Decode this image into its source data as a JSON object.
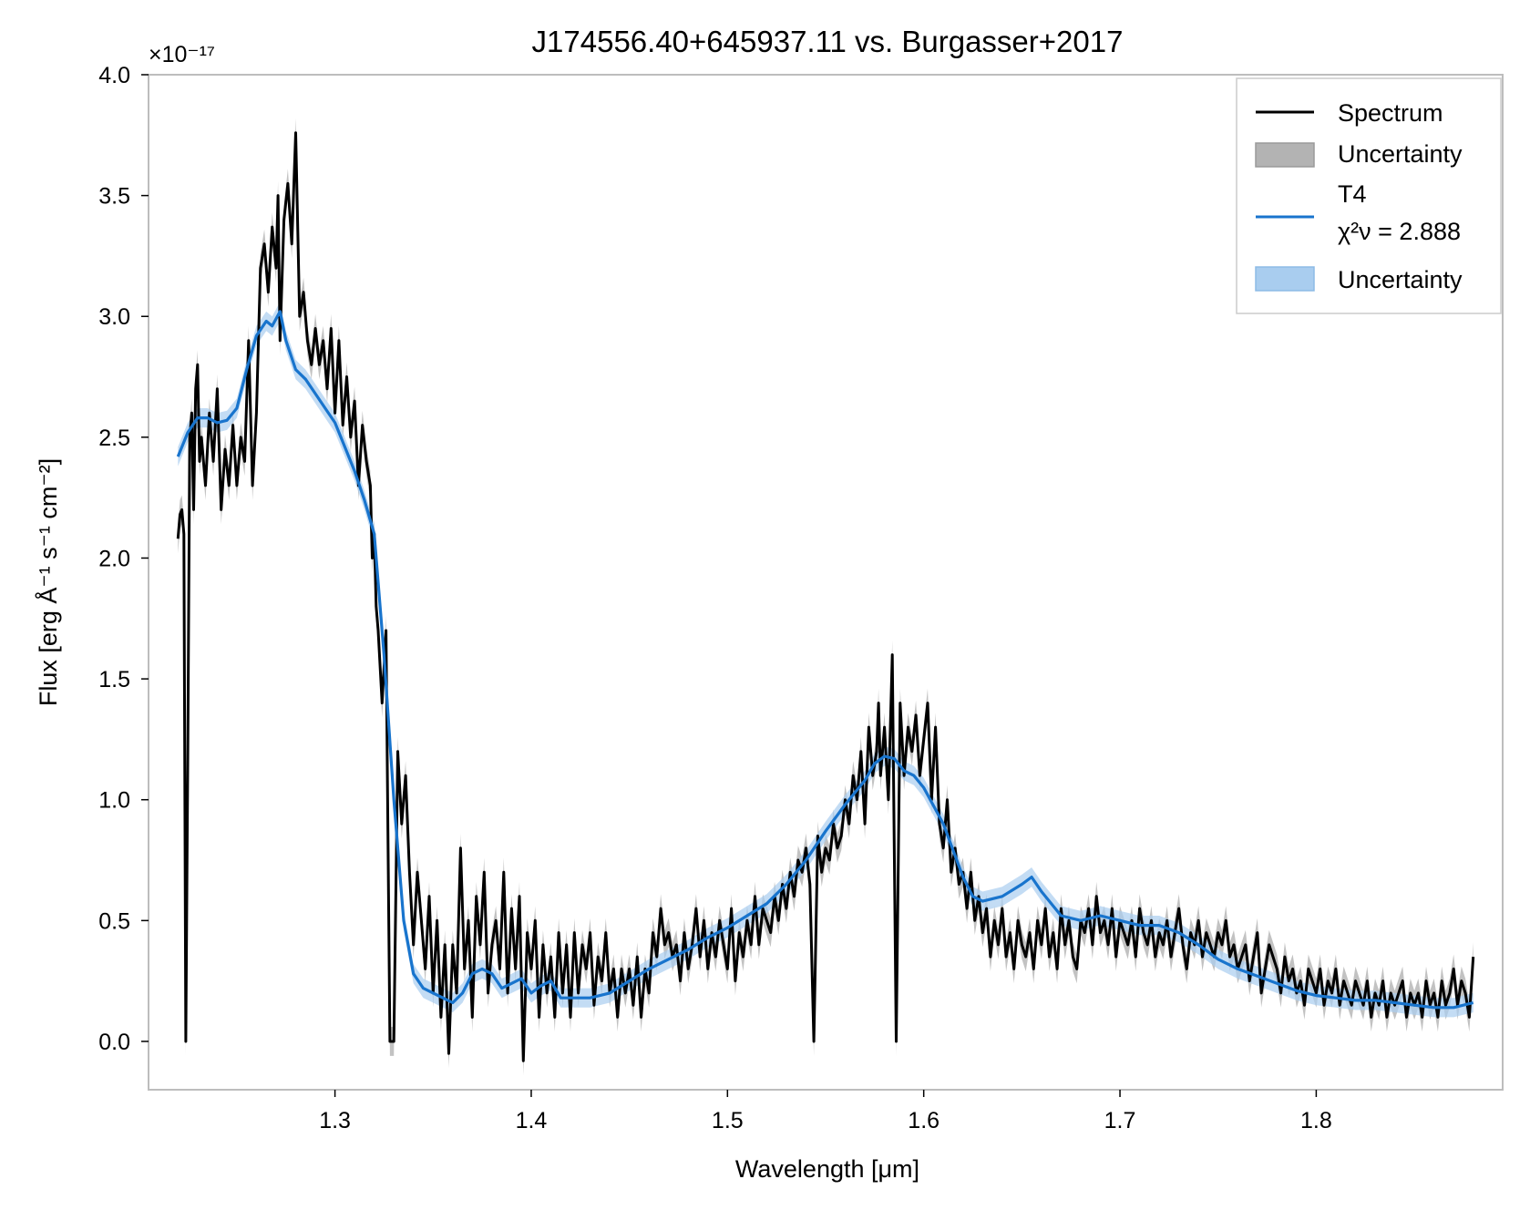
{
  "chart_data": {
    "type": "line",
    "title": "J174556.40+645937.11 vs. Burgasser+2017",
    "xlabel": "Wavelength [μm]",
    "ylabel": "Flux [erg Å⁻¹ s⁻¹ cm⁻²]",
    "y_offset_label": "×10⁻¹⁷",
    "xlim": [
      1.205,
      1.895
    ],
    "ylim": [
      -0.2,
      4.0
    ],
    "x_ticks": [
      1.3,
      1.4,
      1.5,
      1.6,
      1.7,
      1.8
    ],
    "x_tick_labels": [
      "1.3",
      "1.4",
      "1.5",
      "1.6",
      "1.7",
      "1.8"
    ],
    "y_ticks": [
      0.0,
      0.5,
      1.0,
      1.5,
      2.0,
      2.5,
      3.0,
      3.5,
      4.0
    ],
    "y_tick_labels": [
      "0.0",
      "0.5",
      "1.0",
      "1.5",
      "2.0",
      "2.5",
      "3.0",
      "3.5",
      "4.0"
    ],
    "grid": false,
    "legend_position": "top-right",
    "legend": [
      {
        "label": "Spectrum",
        "kind": "line",
        "color": "#000000"
      },
      {
        "label": "Uncertainty",
        "kind": "patch",
        "color": "#b3b3b3"
      },
      {
        "label": "T4",
        "label2": "χ²ν = 2.888",
        "kind": "line",
        "color": "#1874cd"
      },
      {
        "label": "Uncertainty",
        "kind": "patch",
        "color": "#a9cdef"
      }
    ],
    "series": [
      {
        "name": "Spectrum",
        "color": "#000000",
        "band_color": "#b3b3b3",
        "band_halfwidth": 0.06,
        "x": [
          1.22,
          1.221,
          1.222,
          1.223,
          1.224,
          1.225,
          1.226,
          1.227,
          1.228,
          1.229,
          1.23,
          1.231,
          1.232,
          1.234,
          1.236,
          1.238,
          1.24,
          1.242,
          1.244,
          1.246,
          1.248,
          1.25,
          1.252,
          1.254,
          1.256,
          1.258,
          1.26,
          1.262,
          1.264,
          1.266,
          1.268,
          1.27,
          1.271,
          1.272,
          1.274,
          1.276,
          1.278,
          1.28,
          1.282,
          1.284,
          1.286,
          1.288,
          1.29,
          1.292,
          1.294,
          1.296,
          1.298,
          1.3,
          1.302,
          1.304,
          1.306,
          1.308,
          1.31,
          1.312,
          1.314,
          1.316,
          1.318,
          1.319,
          1.32,
          1.321,
          1.322,
          1.324,
          1.326,
          1.328,
          1.33,
          1.332,
          1.334,
          1.336,
          1.338,
          1.34,
          1.342,
          1.344,
          1.346,
          1.348,
          1.35,
          1.352,
          1.354,
          1.356,
          1.358,
          1.36,
          1.362,
          1.364,
          1.366,
          1.368,
          1.37,
          1.372,
          1.374,
          1.376,
          1.378,
          1.38,
          1.382,
          1.384,
          1.386,
          1.388,
          1.39,
          1.392,
          1.394,
          1.396,
          1.398,
          1.4,
          1.402,
          1.404,
          1.406,
          1.408,
          1.41,
          1.412,
          1.414,
          1.416,
          1.418,
          1.42,
          1.422,
          1.424,
          1.426,
          1.428,
          1.43,
          1.432,
          1.434,
          1.436,
          1.438,
          1.44,
          1.442,
          1.444,
          1.446,
          1.448,
          1.45,
          1.452,
          1.454,
          1.456,
          1.458,
          1.46,
          1.462,
          1.464,
          1.466,
          1.468,
          1.47,
          1.472,
          1.474,
          1.476,
          1.478,
          1.48,
          1.482,
          1.484,
          1.486,
          1.488,
          1.49,
          1.492,
          1.494,
          1.496,
          1.498,
          1.5,
          1.502,
          1.504,
          1.506,
          1.508,
          1.51,
          1.512,
          1.514,
          1.516,
          1.518,
          1.52,
          1.522,
          1.524,
          1.526,
          1.528,
          1.53,
          1.532,
          1.534,
          1.536,
          1.538,
          1.54,
          1.542,
          1.544,
          1.546,
          1.548,
          1.55,
          1.552,
          1.554,
          1.556,
          1.558,
          1.56,
          1.562,
          1.564,
          1.566,
          1.568,
          1.57,
          1.572,
          1.574,
          1.576,
          1.577,
          1.578,
          1.58,
          1.582,
          1.584,
          1.586,
          1.588,
          1.59,
          1.592,
          1.594,
          1.596,
          1.598,
          1.6,
          1.602,
          1.604,
          1.606,
          1.608,
          1.61,
          1.612,
          1.614,
          1.616,
          1.618,
          1.62,
          1.622,
          1.624,
          1.626,
          1.628,
          1.63,
          1.632,
          1.634,
          1.636,
          1.638,
          1.64,
          1.642,
          1.644,
          1.646,
          1.648,
          1.65,
          1.652,
          1.654,
          1.656,
          1.658,
          1.66,
          1.662,
          1.664,
          1.666,
          1.668,
          1.67,
          1.672,
          1.674,
          1.676,
          1.678,
          1.68,
          1.682,
          1.684,
          1.686,
          1.688,
          1.69,
          1.692,
          1.694,
          1.696,
          1.698,
          1.7,
          1.702,
          1.704,
          1.706,
          1.708,
          1.71,
          1.712,
          1.714,
          1.716,
          1.718,
          1.72,
          1.722,
          1.724,
          1.726,
          1.728,
          1.73,
          1.732,
          1.734,
          1.736,
          1.738,
          1.74,
          1.742,
          1.744,
          1.746,
          1.748,
          1.75,
          1.752,
          1.754,
          1.756,
          1.758,
          1.76,
          1.762,
          1.764,
          1.766,
          1.768,
          1.77,
          1.772,
          1.774,
          1.776,
          1.778,
          1.78,
          1.782,
          1.784,
          1.786,
          1.788,
          1.79,
          1.792,
          1.794,
          1.796,
          1.798,
          1.8,
          1.802,
          1.804,
          1.806,
          1.808,
          1.81,
          1.812,
          1.814,
          1.816,
          1.818,
          1.82,
          1.822,
          1.824,
          1.826,
          1.828,
          1.83,
          1.832,
          1.834,
          1.836,
          1.838,
          1.84,
          1.842,
          1.844,
          1.846,
          1.848,
          1.85,
          1.852,
          1.854,
          1.856,
          1.858,
          1.86,
          1.862,
          1.864,
          1.866,
          1.868,
          1.87,
          1.872,
          1.874,
          1.876,
          1.878,
          1.88
        ],
        "y": [
          2.08,
          2.18,
          2.2,
          2.1,
          0.0,
          1.2,
          2.5,
          2.6,
          2.2,
          2.7,
          2.8,
          2.4,
          2.5,
          2.3,
          2.6,
          2.4,
          2.7,
          2.2,
          2.45,
          2.3,
          2.55,
          2.3,
          2.5,
          2.4,
          2.9,
          2.3,
          2.6,
          3.2,
          3.3,
          3.1,
          3.37,
          3.2,
          3.5,
          2.9,
          3.4,
          3.55,
          3.3,
          3.76,
          3.0,
          3.1,
          2.9,
          2.8,
          2.95,
          2.8,
          2.9,
          2.7,
          2.95,
          2.6,
          2.9,
          2.55,
          2.75,
          2.5,
          2.65,
          2.3,
          2.55,
          2.4,
          2.3,
          2.0,
          2.1,
          1.8,
          1.7,
          1.4,
          1.7,
          0.0,
          0.0,
          1.2,
          0.9,
          1.1,
          0.7,
          0.4,
          0.7,
          0.5,
          0.3,
          0.6,
          0.2,
          0.5,
          0.1,
          0.4,
          -0.05,
          0.4,
          0.2,
          0.8,
          0.3,
          0.5,
          0.1,
          0.6,
          0.4,
          0.7,
          0.2,
          0.4,
          0.5,
          0.3,
          0.7,
          0.2,
          0.55,
          0.3,
          0.6,
          -0.08,
          0.45,
          0.3,
          0.5,
          0.1,
          0.4,
          0.2,
          0.35,
          0.1,
          0.45,
          0.2,
          0.4,
          0.1,
          0.45,
          0.2,
          0.4,
          0.3,
          0.45,
          0.15,
          0.35,
          0.25,
          0.45,
          0.2,
          0.3,
          0.1,
          0.3,
          0.2,
          0.3,
          0.15,
          0.35,
          0.1,
          0.3,
          0.2,
          0.45,
          0.35,
          0.55,
          0.4,
          0.45,
          0.35,
          0.4,
          0.25,
          0.45,
          0.3,
          0.4,
          0.55,
          0.35,
          0.5,
          0.3,
          0.45,
          0.35,
          0.5,
          0.4,
          0.3,
          0.55,
          0.25,
          0.45,
          0.35,
          0.5,
          0.4,
          0.6,
          0.4,
          0.55,
          0.5,
          0.45,
          0.6,
          0.5,
          0.65,
          0.55,
          0.7,
          0.6,
          0.75,
          0.7,
          0.8,
          0.65,
          0.0,
          0.85,
          0.7,
          0.8,
          0.75,
          0.9,
          0.8,
          0.85,
          1.0,
          0.9,
          1.1,
          1.0,
          1.2,
          0.9,
          1.3,
          1.1,
          1.2,
          1.4,
          1.1,
          1.3,
          1.0,
          1.6,
          0.0,
          1.4,
          1.1,
          1.3,
          1.2,
          1.35,
          1.1,
          1.25,
          1.4,
          1.0,
          1.3,
          0.9,
          0.8,
          1.0,
          0.7,
          0.8,
          0.65,
          0.7,
          0.55,
          0.7,
          0.5,
          0.6,
          0.45,
          0.55,
          0.35,
          0.5,
          0.4,
          0.55,
          0.35,
          0.45,
          0.3,
          0.5,
          0.4,
          0.35,
          0.45,
          0.3,
          0.5,
          0.4,
          0.55,
          0.35,
          0.45,
          0.3,
          0.55,
          0.4,
          0.5,
          0.35,
          0.3,
          0.5,
          0.45,
          0.55,
          0.4,
          0.6,
          0.45,
          0.5,
          0.4,
          0.55,
          0.35,
          0.5,
          0.45,
          0.4,
          0.5,
          0.35,
          0.55,
          0.45,
          0.4,
          0.5,
          0.35,
          0.45,
          0.4,
          0.5,
          0.35,
          0.45,
          0.55,
          0.4,
          0.3,
          0.45,
          0.4,
          0.5,
          0.35,
          0.45,
          0.4,
          0.35,
          0.45,
          0.4,
          0.5,
          0.35,
          0.4,
          0.3,
          0.35,
          0.4,
          0.25,
          0.35,
          0.45,
          0.2,
          0.3,
          0.4,
          0.35,
          0.3,
          0.2,
          0.35,
          0.25,
          0.3,
          0.2,
          0.25,
          0.15,
          0.3,
          0.25,
          0.2,
          0.3,
          0.15,
          0.25,
          0.2,
          0.3,
          0.15,
          0.25,
          0.2,
          0.15,
          0.25,
          0.2,
          0.15,
          0.25,
          0.1,
          0.2,
          0.15,
          0.25,
          0.1,
          0.2,
          0.15,
          0.2,
          0.25,
          0.1,
          0.2,
          0.15,
          0.2,
          0.1,
          0.25,
          0.15,
          0.2,
          0.1,
          0.25,
          0.15,
          0.2,
          0.3,
          0.15,
          0.25,
          0.2,
          0.1,
          0.35
        ]
      },
      {
        "name": "T4",
        "color": "#1874cd",
        "band_color": "#a9cdef",
        "band_halfwidth": 0.04,
        "x": [
          1.22,
          1.225,
          1.23,
          1.235,
          1.24,
          1.245,
          1.25,
          1.255,
          1.26,
          1.265,
          1.268,
          1.272,
          1.275,
          1.28,
          1.285,
          1.29,
          1.295,
          1.3,
          1.305,
          1.31,
          1.315,
          1.32,
          1.325,
          1.33,
          1.335,
          1.34,
          1.345,
          1.35,
          1.355,
          1.36,
          1.365,
          1.37,
          1.375,
          1.38,
          1.385,
          1.39,
          1.395,
          1.4,
          1.405,
          1.41,
          1.415,
          1.42,
          1.43,
          1.44,
          1.45,
          1.46,
          1.47,
          1.48,
          1.49,
          1.5,
          1.51,
          1.52,
          1.53,
          1.54,
          1.55,
          1.56,
          1.57,
          1.575,
          1.58,
          1.585,
          1.59,
          1.595,
          1.6,
          1.61,
          1.62,
          1.625,
          1.63,
          1.64,
          1.65,
          1.655,
          1.66,
          1.67,
          1.68,
          1.69,
          1.7,
          1.71,
          1.72,
          1.73,
          1.74,
          1.75,
          1.76,
          1.77,
          1.78,
          1.79,
          1.8,
          1.81,
          1.82,
          1.83,
          1.84,
          1.85,
          1.86,
          1.87,
          1.88
        ],
        "y": [
          2.42,
          2.52,
          2.58,
          2.58,
          2.56,
          2.57,
          2.62,
          2.78,
          2.92,
          2.98,
          2.96,
          3.02,
          2.9,
          2.78,
          2.74,
          2.68,
          2.62,
          2.56,
          2.46,
          2.36,
          2.24,
          2.1,
          1.6,
          1.0,
          0.5,
          0.28,
          0.22,
          0.2,
          0.18,
          0.16,
          0.2,
          0.28,
          0.3,
          0.28,
          0.22,
          0.24,
          0.26,
          0.2,
          0.23,
          0.25,
          0.18,
          0.18,
          0.18,
          0.2,
          0.25,
          0.3,
          0.34,
          0.38,
          0.43,
          0.47,
          0.52,
          0.57,
          0.65,
          0.75,
          0.87,
          0.98,
          1.08,
          1.15,
          1.18,
          1.17,
          1.12,
          1.1,
          1.05,
          0.9,
          0.68,
          0.6,
          0.58,
          0.6,
          0.65,
          0.68,
          0.62,
          0.52,
          0.5,
          0.52,
          0.5,
          0.48,
          0.48,
          0.45,
          0.4,
          0.34,
          0.3,
          0.27,
          0.24,
          0.21,
          0.19,
          0.18,
          0.17,
          0.17,
          0.16,
          0.15,
          0.14,
          0.14,
          0.16
        ]
      }
    ]
  }
}
